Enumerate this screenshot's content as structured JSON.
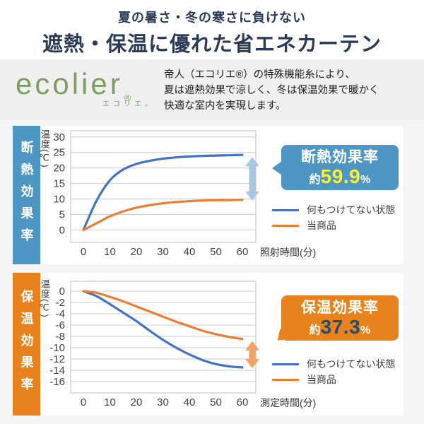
{
  "header": {
    "subtitle": "夏の暑さ・冬の寒さに負けない",
    "title": "遮熱・保温に優れた省エネカーテン"
  },
  "brand": {
    "logo": "ecolier",
    "reg_mark": "®",
    "ruby": "エコリエ。",
    "description_lines": [
      "帝人（エコリエ®）の特殊機能糸により、",
      "夏は遮熱効果で涼しく、冬は保温効果で暖かく",
      "快適な室内を実現します。"
    ]
  },
  "colors": {
    "title_navy": "#2b3a56",
    "logo_green": "#7d9d62",
    "band_gray": "#efefef",
    "page_gray": "#f5f5f6",
    "accent_blue": "#4e97c5",
    "accent_orange": "#e8821d",
    "line_blue": "#4472c4",
    "line_orange": "#ed7d31",
    "highlight_yellow": "#f7ef3a",
    "highlight_navy": "#1f4e79"
  },
  "chart_data": [
    {
      "type": "line",
      "section_label": "断熱効果率",
      "accent": "#4e97c5",
      "ylabel": "温度(℃)",
      "xlabel": "照射時間(分)",
      "xlim": [
        0,
        60
      ],
      "ylim": [
        -4,
        32
      ],
      "xticks": [
        0,
        10,
        20,
        30,
        40,
        50,
        60
      ],
      "yticks": [
        30,
        25,
        20,
        15,
        10,
        5,
        0
      ],
      "grid": true,
      "x": [
        0,
        5,
        10,
        15,
        20,
        25,
        30,
        35,
        40,
        45,
        50,
        55,
        60
      ],
      "series": [
        {
          "name": "何もつけてない状態",
          "color": "#4472c4",
          "values": [
            0,
            9.5,
            16,
            19.5,
            21.3,
            22.3,
            23,
            23.4,
            23.7,
            23.9,
            24,
            24.1,
            24.2
          ]
        },
        {
          "name": "当商品",
          "color": "#ed7d31",
          "values": [
            0,
            2.2,
            4.4,
            6,
            7.2,
            8,
            8.6,
            9,
            9.3,
            9.5,
            9.6,
            9.65,
            9.7
          ]
        }
      ],
      "gap_arrow": {
        "color": "#a9c7e3",
        "top_series": 0,
        "bottom_series": 1
      },
      "callout": {
        "title": "断熱効果率",
        "prefix": "約",
        "value": "59.9",
        "unit": "%",
        "value_color": "#f7ef3a"
      },
      "legend": [
        {
          "label": "何もつけてない状態"
        },
        {
          "label": "当商品"
        }
      ]
    },
    {
      "type": "line",
      "section_label": "保温効果率",
      "accent": "#e8821d",
      "ylabel": "温度(℃)",
      "xlabel": "測定時間(分)",
      "xlim": [
        0,
        60
      ],
      "ylim": [
        -18,
        1.75
      ],
      "xticks": [
        0,
        10,
        20,
        30,
        40,
        50,
        60
      ],
      "yticks": [
        0,
        -2,
        -4,
        -6,
        -8,
        -10,
        -12,
        -14,
        -16
      ],
      "grid": true,
      "x": [
        0,
        5,
        10,
        15,
        20,
        25,
        30,
        35,
        40,
        45,
        50,
        55,
        60
      ],
      "series": [
        {
          "name": "何もつけてない状態",
          "color": "#4472c4",
          "values": [
            0,
            -0.9,
            -2.3,
            -3.8,
            -5.3,
            -7,
            -8.6,
            -10,
            -11.2,
            -12.2,
            -12.9,
            -13.3,
            -13.5
          ]
        },
        {
          "name": "当商品",
          "color": "#ed7d31",
          "values": [
            0,
            -0.3,
            -1,
            -1.8,
            -2.7,
            -3.6,
            -4.5,
            -5.4,
            -6.2,
            -7,
            -7.6,
            -8.1,
            -8.46
          ]
        }
      ],
      "gap_arrow": {
        "color": "#f2a263",
        "top_series": 1,
        "bottom_series": 0
      },
      "callout": {
        "title": "保温効果率",
        "prefix": "約",
        "value": "37.3",
        "unit": "%",
        "value_color": "#1f4e79"
      },
      "legend": [
        {
          "label": "何もつけてない状態"
        },
        {
          "label": "当商品"
        }
      ]
    }
  ]
}
